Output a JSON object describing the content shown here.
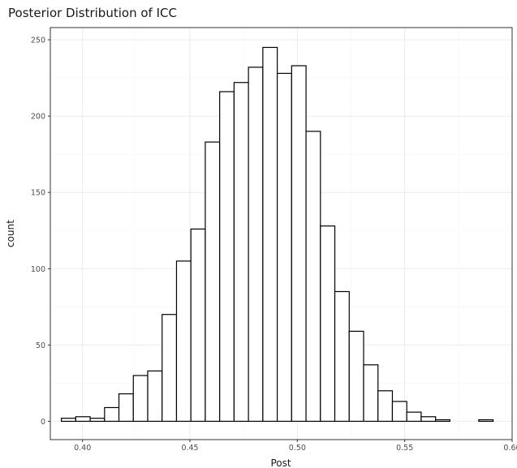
{
  "chart_data": {
    "type": "bar",
    "title": "Posterior Distribution of ICC",
    "xlabel": "Post",
    "ylabel": "count",
    "xlim": [
      0.385,
      0.6
    ],
    "ylim": [
      -12,
      258
    ],
    "x_ticks": [
      0.4,
      0.45,
      0.5,
      0.55,
      0.6
    ],
    "x_tick_labels": [
      "0.40",
      "0.45",
      "0.50",
      "0.55",
      "0.60"
    ],
    "y_ticks": [
      0,
      50,
      100,
      150,
      200,
      250
    ],
    "y_tick_labels": [
      "0",
      "50",
      "100",
      "150",
      "200",
      "250"
    ],
    "grid": true,
    "legend": "none",
    "bin_width": 0.00671,
    "bin_centers": [
      0.3935,
      0.4002,
      0.4069,
      0.4136,
      0.4203,
      0.427,
      0.4337,
      0.4404,
      0.4471,
      0.4538,
      0.4605,
      0.4672,
      0.4739,
      0.4806,
      0.4873,
      0.494,
      0.5007,
      0.5074,
      0.5141,
      0.5208,
      0.5275,
      0.5342,
      0.5409,
      0.5476,
      0.5543,
      0.561,
      0.5677,
      0.5744,
      0.5811,
      0.5878
    ],
    "counts": [
      2,
      3,
      2,
      9,
      18,
      30,
      33,
      70,
      105,
      126,
      183,
      216,
      222,
      232,
      245,
      228,
      233,
      190,
      128,
      85,
      59,
      37,
      20,
      13,
      6,
      3,
      1,
      0,
      0,
      1
    ],
    "colors": {
      "bar_fill": "#ffffff",
      "bar_outline": "#000000",
      "panel_border": "#333333",
      "grid": "#ebebeb"
    }
  }
}
